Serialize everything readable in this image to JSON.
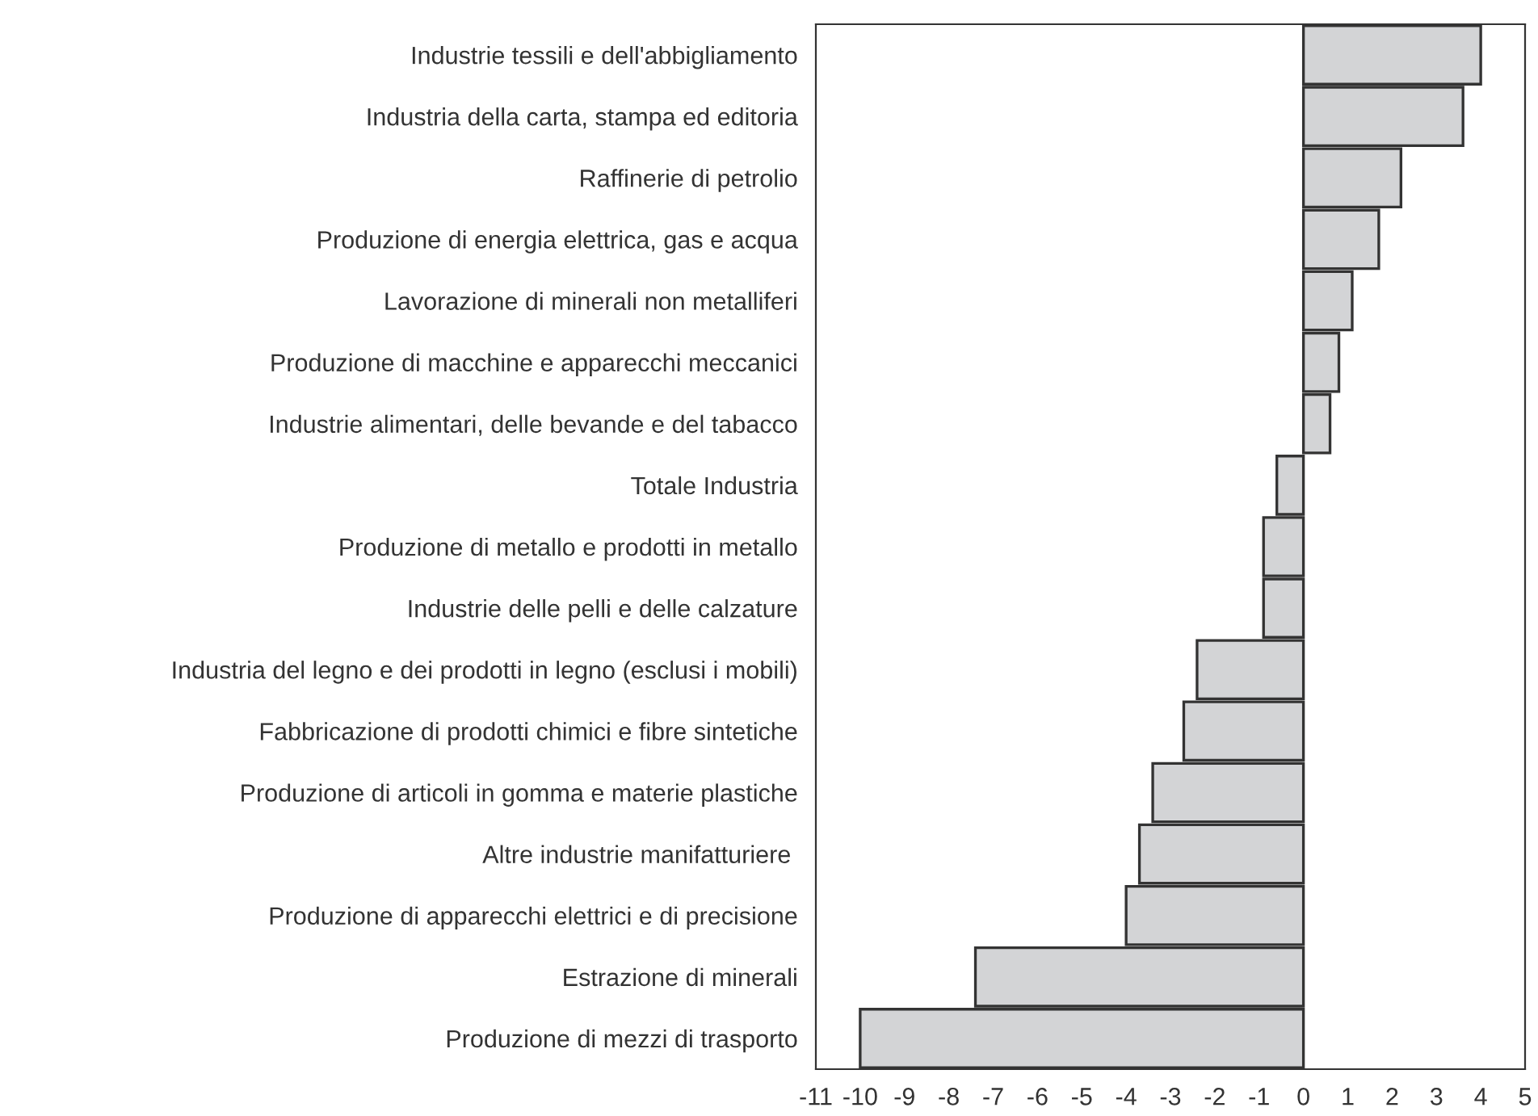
{
  "chart_data": {
    "type": "bar",
    "orientation": "horizontal",
    "categories": [
      "Industrie tessili e dell'abbigliamento",
      "Industria della carta, stampa ed editoria",
      "Raffinerie di petrolio",
      "Produzione di energia elettrica, gas e acqua",
      "Lavorazione di minerali non metalliferi",
      "Produzione di macchine e apparecchi meccanici",
      "Industrie alimentari, delle bevande e del tabacco",
      "Totale Industria",
      "Produzione di metallo e prodotti in metallo",
      "Industrie delle pelli e delle calzature",
      "Industria del legno e dei prodotti in legno (esclusi i mobili)",
      "Fabbricazione di prodotti chimici e fibre sintetiche",
      "Produzione di articoli in gomma e materie plastiche",
      "Altre industrie manifatturiere ",
      "Produzione di apparecchi elettrici e di precisione",
      "Estrazione di minerali",
      "Produzione di mezzi di trasporto"
    ],
    "series": [
      {
        "color": "#d3d4d6",
        "values": [
          4.0,
          3.6,
          2.2,
          1.7,
          1.1,
          0.8,
          0.6,
          -0.6,
          -0.9,
          -0.9,
          -2.4,
          -2.7,
          -3.4,
          -3.7,
          -4.0,
          -7.4,
          -10.0
        ]
      }
    ],
    "xlim": [
      -11,
      5
    ],
    "xticks": [
      -11,
      -10,
      -9,
      -8,
      -7,
      -6,
      -5,
      -4,
      -3,
      -2,
      -1,
      0,
      1,
      2,
      3,
      4,
      5
    ],
    "legend": false
  }
}
